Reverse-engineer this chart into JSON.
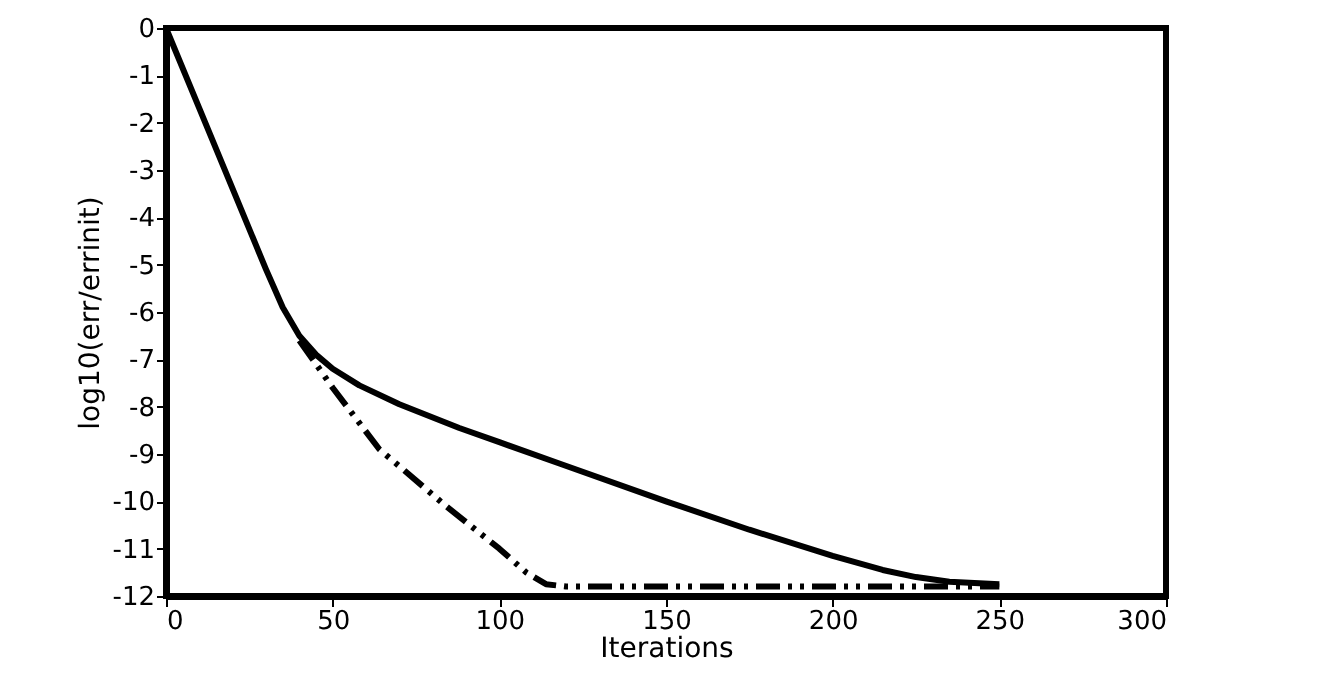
{
  "chart_data": {
    "type": "line",
    "xlabel": "Iterations",
    "ylabel": "log10(err/errinit)",
    "xlim": [
      0,
      300
    ],
    "ylim": [
      -12,
      0
    ],
    "xticks": [
      0,
      50,
      100,
      150,
      200,
      250,
      300
    ],
    "yticks": [
      -12,
      -11,
      -10,
      -9,
      -8,
      -7,
      -6,
      -5,
      -4,
      -3,
      -2,
      -1,
      0
    ],
    "grid": false,
    "series": [
      {
        "color": "#000000",
        "line_style": "solid",
        "x": [
          0,
          10,
          20,
          30,
          35,
          40,
          45,
          50,
          58,
          70,
          88,
          100,
          118,
          150,
          175,
          200,
          215,
          225,
          235,
          250
        ],
        "values": [
          0,
          -1.7,
          -3.4,
          -5.1,
          -5.9,
          -6.5,
          -6.9,
          -7.2,
          -7.55,
          -7.95,
          -8.45,
          -8.75,
          -9.2,
          -10.0,
          -10.6,
          -11.15,
          -11.45,
          -11.6,
          -11.7,
          -11.75
        ]
      },
      {
        "color": "#000000",
        "line_style": "dashed",
        "x": [
          40,
          50,
          64,
          84,
          100,
          108,
          114,
          120,
          250
        ],
        "values": [
          -6.6,
          -7.6,
          -8.9,
          -10.1,
          -11.0,
          -11.5,
          -11.75,
          -11.8,
          -11.8
        ]
      }
    ]
  }
}
